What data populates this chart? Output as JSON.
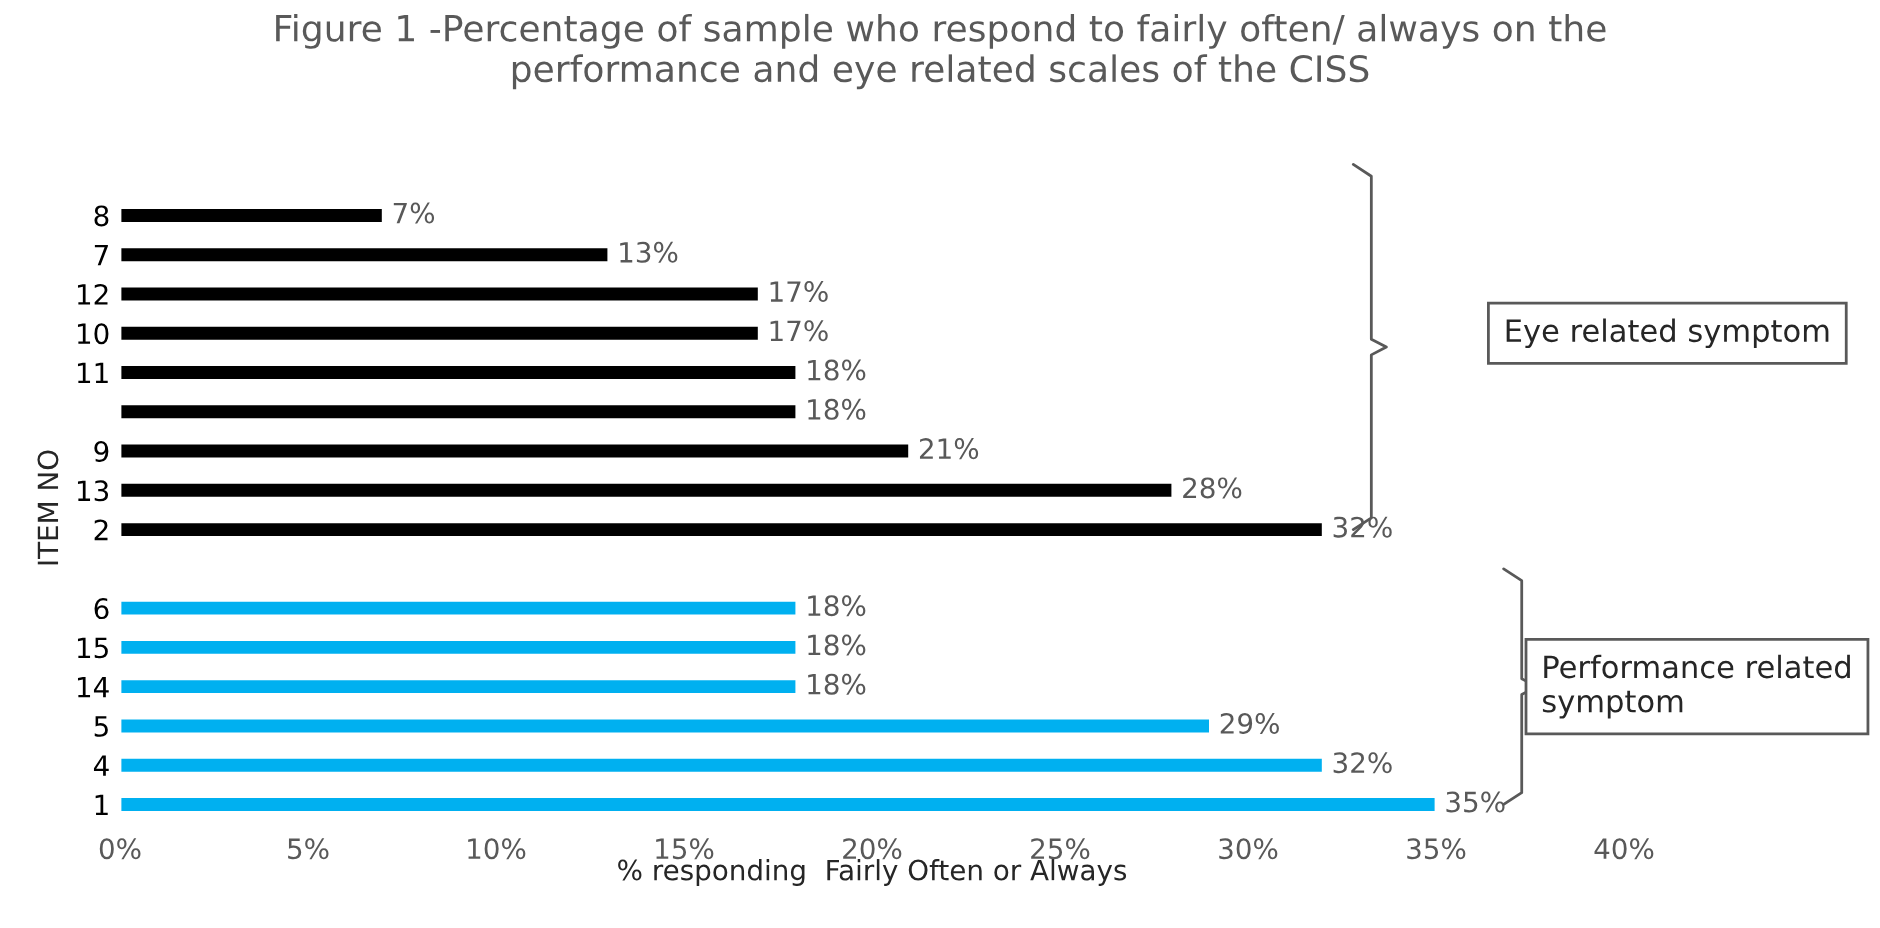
{
  "chart_data": {
    "type": "bar",
    "orientation": "horizontal",
    "title": "Figure 1 -Percentage of sample who respond to fairly often/ always on the\nperformance and eye related scales of the CISS",
    "xlabel": "% responding  Fairly Often or Always",
    "ylabel": "ITEM NO",
    "categories": [
      "8",
      "7",
      "12",
      "10",
      "11",
      null,
      "9",
      "13",
      "2",
      null,
      "6",
      "15",
      "14",
      "5",
      "4",
      "1"
    ],
    "values": [
      7,
      13,
      17,
      17,
      18,
      18,
      21,
      28,
      32,
      null,
      18,
      18,
      18,
      29,
      32,
      35
    ],
    "colors": [
      "#000000",
      "#000000",
      "#000000",
      "#000000",
      "#000000",
      "#000000",
      "#000000",
      "#000000",
      "#000000",
      null,
      "#00b0f0",
      "#00b0f0",
      "#00b0f0",
      "#00b0f0",
      "#00b0f0",
      "#00b0f0"
    ],
    "value_labels": [
      "7%",
      "13%",
      "17%",
      "17%",
      "18%",
      "18%",
      "21%",
      "28%",
      "32%",
      null,
      "18%",
      "18%",
      "18%",
      "29%",
      "32%",
      "35%"
    ],
    "xlim": [
      0,
      40
    ],
    "xticks": [
      {
        "value": 0,
        "label": "0%"
      },
      {
        "value": 5,
        "label": "5%"
      },
      {
        "value": 10,
        "label": "10%"
      },
      {
        "value": 15,
        "label": "15%"
      },
      {
        "value": 20,
        "label": "20%"
      },
      {
        "value": 25,
        "label": "25%"
      },
      {
        "value": 30,
        "label": "30%"
      },
      {
        "value": 35,
        "label": "35%"
      },
      {
        "value": 40,
        "label": "40%"
      }
    ],
    "annotations": [
      "Eye related symptom",
      "Performance related symptom"
    ],
    "grid": false,
    "legend": false
  }
}
